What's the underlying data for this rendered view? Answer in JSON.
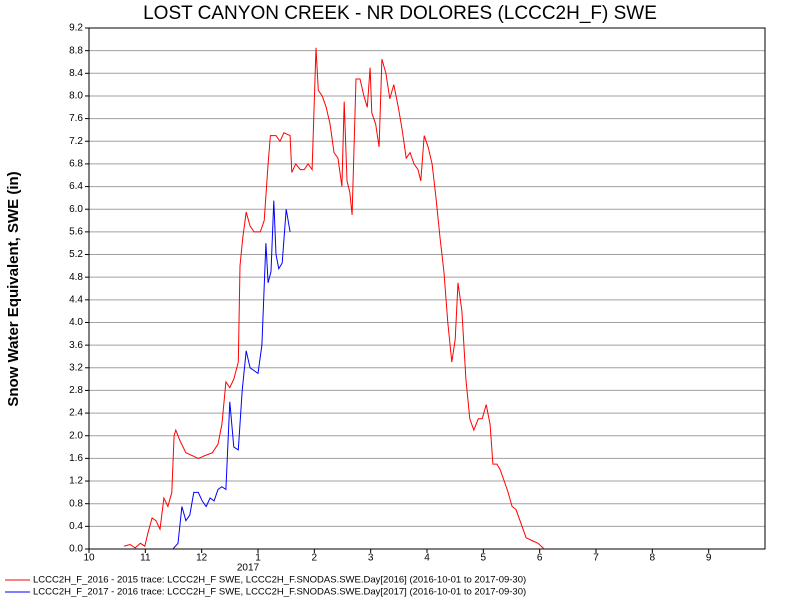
{
  "chart_data": {
    "type": "line",
    "title": "LOST CANYON CREEK - NR DOLORES (LCCC2H_F) SWE",
    "y_label": "Snow Water Equivalent, SWE (in)",
    "x_year_label": "2017",
    "xlim": [
      0,
      12
    ],
    "xticks": [
      {
        "value": 0,
        "label": "10"
      },
      {
        "value": 1,
        "label": "11"
      },
      {
        "value": 2,
        "label": "12"
      },
      {
        "value": 3,
        "label": "1"
      },
      {
        "value": 4,
        "label": "2"
      },
      {
        "value": 5,
        "label": "3"
      },
      {
        "value": 6,
        "label": "4"
      },
      {
        "value": 7,
        "label": "5"
      },
      {
        "value": 8,
        "label": "6"
      },
      {
        "value": 9,
        "label": "7"
      },
      {
        "value": 10,
        "label": "8"
      },
      {
        "value": 11,
        "label": "9"
      }
    ],
    "ylim": [
      0,
      9.2
    ],
    "yticks": [
      {
        "value": 0,
        "label": "0.0"
      },
      0.4,
      0.8,
      1.2,
      1.6,
      {
        "value": 2,
        "label": "2.0"
      },
      2.4,
      2.8,
      3.2,
      3.6,
      {
        "value": 4,
        "label": "4.0"
      },
      4.4,
      4.8,
      5.2,
      5.6,
      {
        "value": 6,
        "label": "6.0"
      },
      6.4,
      6.8,
      7.2,
      7.6,
      {
        "value": 8,
        "label": "8.0"
      },
      8.4,
      8.8,
      9.2
    ],
    "grid": true,
    "series": [
      {
        "name": "LCCC2H_F_2016 - 2015 trace: LCCC2H_F SWE, LCCC2H_F.SNODAS.SWE.Day[2016] (2016-10-01 to 2017-09-30)",
        "color": "#ff0000",
        "x": [
          0.62,
          0.73,
          0.82,
          0.91,
          0.99,
          1.05,
          1.12,
          1.19,
          1.26,
          1.33,
          1.4,
          1.47,
          1.51,
          1.54,
          1.62,
          1.72,
          1.83,
          1.94,
          2.06,
          2.19,
          2.29,
          2.36,
          2.43,
          2.5,
          2.57,
          2.65,
          2.68,
          2.73,
          2.79,
          2.86,
          2.93,
          3.04,
          3.11,
          3.18,
          3.22,
          3.32,
          3.39,
          3.46,
          3.57,
          3.6,
          3.67,
          3.75,
          3.82,
          3.89,
          3.96,
          4.03,
          4.07,
          4.14,
          4.21,
          4.28,
          4.35,
          4.42,
          4.49,
          4.53,
          4.58,
          4.63,
          4.67,
          4.74,
          4.81,
          4.88,
          4.94,
          4.99,
          5.02,
          5.09,
          5.15,
          5.2,
          5.27,
          5.34,
          5.41,
          5.49,
          5.56,
          5.63,
          5.7,
          5.77,
          5.84,
          5.89,
          5.95,
          6.02,
          6.09,
          6.16,
          6.23,
          6.3,
          6.37,
          6.44,
          6.5,
          6.55,
          6.62,
          6.69,
          6.76,
          6.83,
          6.91,
          6.98,
          7.05,
          7.12,
          7.17,
          7.24,
          7.3,
          7.37,
          7.44,
          7.51,
          7.58,
          7.65,
          7.76,
          7.86,
          7.97,
          8.08
        ],
        "values": [
          0.05,
          0.08,
          0.02,
          0.1,
          0.05,
          0.3,
          0.55,
          0.5,
          0.35,
          0.9,
          0.75,
          1.0,
          2.0,
          2.1,
          1.9,
          1.7,
          1.65,
          1.6,
          1.65,
          1.7,
          1.85,
          2.2,
          2.95,
          2.85,
          3.0,
          3.3,
          5.0,
          5.5,
          5.95,
          5.7,
          5.6,
          5.6,
          5.8,
          6.8,
          7.3,
          7.3,
          7.2,
          7.35,
          7.3,
          6.65,
          6.8,
          6.7,
          6.7,
          6.8,
          6.7,
          8.85,
          8.1,
          8.0,
          7.8,
          7.5,
          7.0,
          6.9,
          6.4,
          7.9,
          6.5,
          6.3,
          5.9,
          8.3,
          8.3,
          8.0,
          7.8,
          8.5,
          7.7,
          7.5,
          7.1,
          8.65,
          8.4,
          7.95,
          8.2,
          7.8,
          7.4,
          6.9,
          7.0,
          6.8,
          6.7,
          6.5,
          7.3,
          7.1,
          6.8,
          6.2,
          5.5,
          4.9,
          4.0,
          3.3,
          3.7,
          4.7,
          4.2,
          3.0,
          2.3,
          2.1,
          2.3,
          2.3,
          2.55,
          2.2,
          1.5,
          1.5,
          1.4,
          1.2,
          1.0,
          0.75,
          0.7,
          0.5,
          0.2,
          0.15,
          0.1,
          0.0
        ]
      },
      {
        "name": "LCCC2H_F_2017 - 2016 trace: LCCC2H_F SWE, LCCC2H_F.SNODAS.SWE.Day[2017] (2016-10-01 to 2017-09-30)",
        "color": "#0000ff",
        "x": [
          1.49,
          1.58,
          1.65,
          1.72,
          1.79,
          1.86,
          1.94,
          2.01,
          2.08,
          2.15,
          2.22,
          2.29,
          2.36,
          2.43,
          2.5,
          2.57,
          2.65,
          2.72,
          2.79,
          2.86,
          2.93,
          3.0,
          3.07,
          3.14,
          3.18,
          3.23,
          3.28,
          3.32,
          3.37,
          3.43,
          3.5,
          3.57
        ],
        "values": [
          0.0,
          0.1,
          0.75,
          0.5,
          0.6,
          1.0,
          1.0,
          0.85,
          0.75,
          0.9,
          0.85,
          1.05,
          1.1,
          1.05,
          2.6,
          1.8,
          1.75,
          2.8,
          3.5,
          3.2,
          3.15,
          3.1,
          3.6,
          5.4,
          4.7,
          4.9,
          6.15,
          5.2,
          4.95,
          5.05,
          6.0,
          5.6
        ]
      }
    ]
  }
}
